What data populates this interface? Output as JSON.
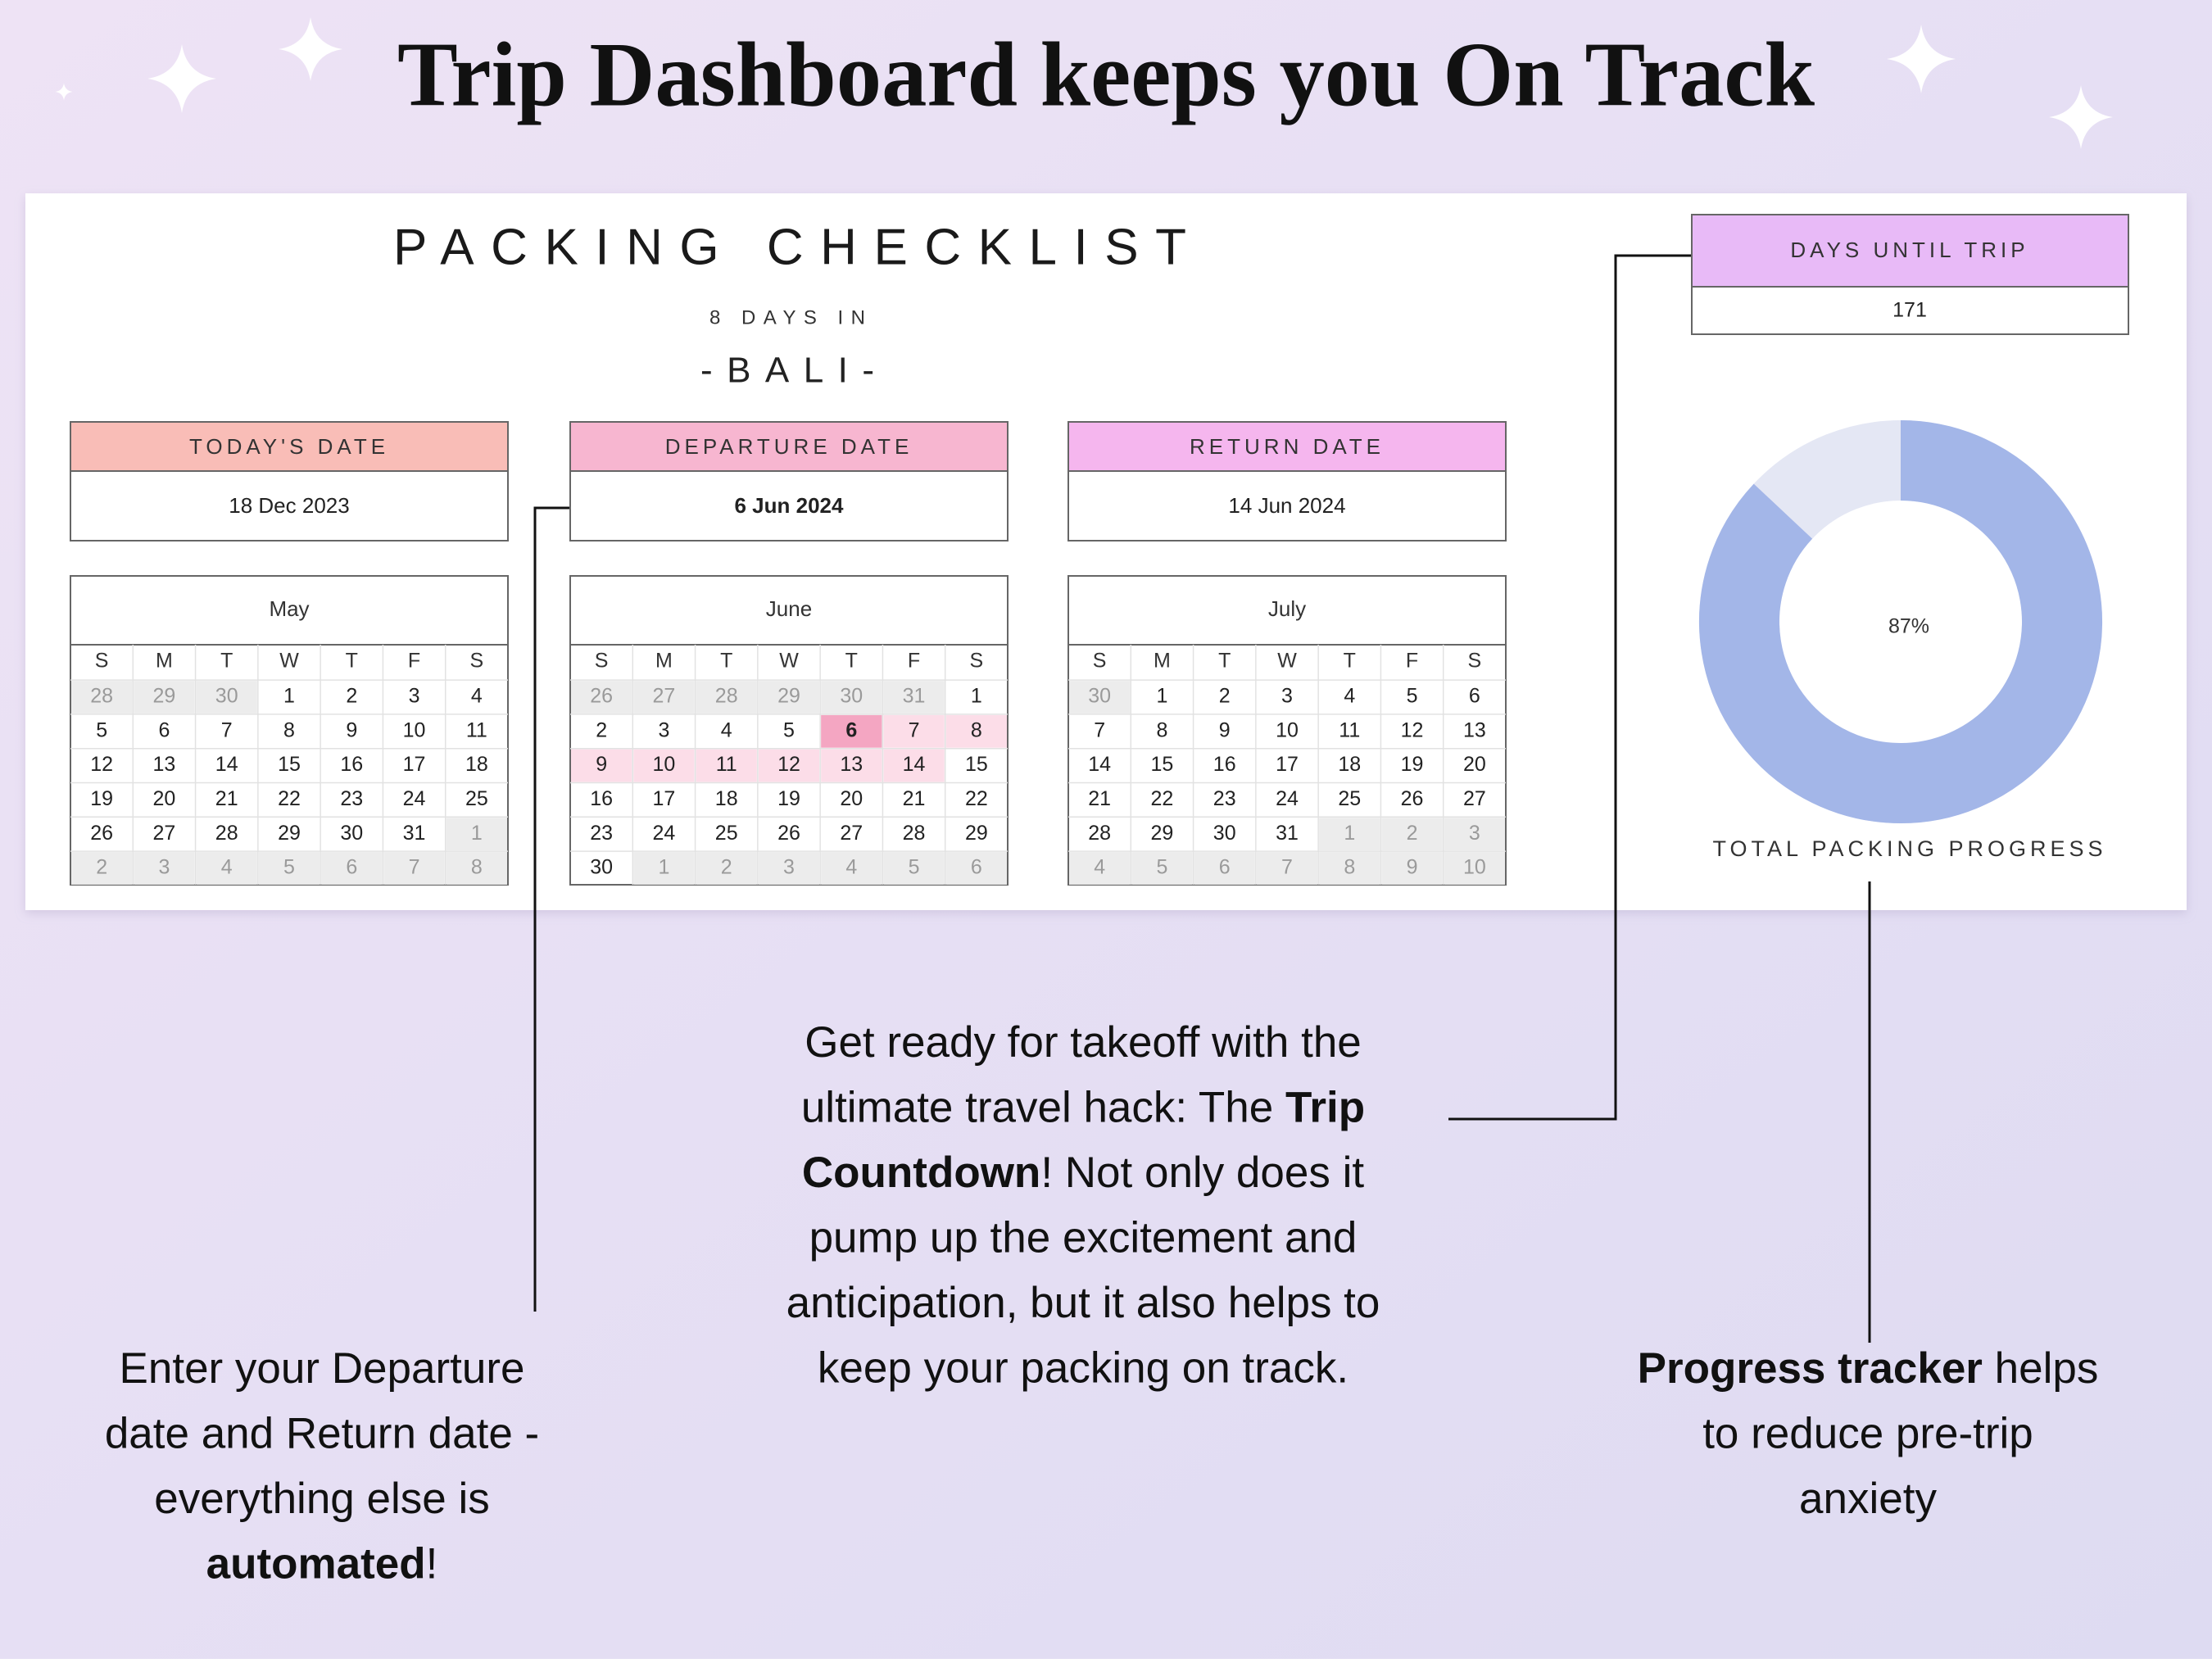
{
  "title": "Trip Dashboard keeps you On Track",
  "checklist": {
    "title": "PACKING CHECKLIST",
    "subtitle": "8 DAYS IN",
    "destination": "-BALI-",
    "dates": [
      {
        "label": "TODAY'S DATE",
        "value": "18 Dec 2023",
        "color": "#f9bdb7"
      },
      {
        "label": "DEPARTURE DATE",
        "value": "6 Jun 2024",
        "color": "#f7b6d0",
        "bold": true
      },
      {
        "label": "RETURN DATE",
        "value": "14 Jun 2024",
        "color": "#f5b6ee"
      }
    ],
    "weekdays": [
      "S",
      "M",
      "T",
      "W",
      "T",
      "F",
      "S"
    ],
    "calendars": [
      {
        "month": "May",
        "weeks": [
          [
            28,
            29,
            30,
            1,
            2,
            3,
            4
          ],
          [
            5,
            6,
            7,
            8,
            9,
            10,
            11
          ],
          [
            12,
            13,
            14,
            15,
            16,
            17,
            18
          ],
          [
            19,
            20,
            21,
            22,
            23,
            24,
            25
          ],
          [
            26,
            27,
            28,
            29,
            30,
            31,
            1
          ],
          [
            2,
            3,
            4,
            5,
            6,
            7,
            8
          ]
        ]
      },
      {
        "month": "June",
        "weeks": [
          [
            26,
            27,
            28,
            29,
            30,
            31,
            1
          ],
          [
            2,
            3,
            4,
            5,
            6,
            7,
            8
          ],
          [
            9,
            10,
            11,
            12,
            13,
            14,
            15
          ],
          [
            16,
            17,
            18,
            19,
            20,
            21,
            22
          ],
          [
            23,
            24,
            25,
            26,
            27,
            28,
            29
          ],
          [
            30,
            1,
            2,
            3,
            4,
            5,
            6
          ]
        ],
        "highlight": {
          "start": 6,
          "end": 14,
          "start_color": "#f4a6c2",
          "color": "#fcdde8"
        }
      },
      {
        "month": "July",
        "weeks": [
          [
            30,
            1,
            2,
            3,
            4,
            5,
            6
          ],
          [
            7,
            8,
            9,
            10,
            11,
            12,
            13
          ],
          [
            14,
            15,
            16,
            17,
            18,
            19,
            20
          ],
          [
            21,
            22,
            23,
            24,
            25,
            26,
            27
          ],
          [
            28,
            29,
            30,
            31,
            1,
            2,
            3
          ],
          [
            4,
            5,
            6,
            7,
            8,
            9,
            10
          ]
        ]
      }
    ]
  },
  "countdown": {
    "label": "DAYS UNTIL TRIP",
    "value": 171,
    "color": "#e8baf7"
  },
  "progress": {
    "value": 87,
    "value_label": "87%",
    "label": "TOTAL PACKING PROGRESS",
    "color": "#a3b6e8",
    "track_color": "#e4e7f4"
  },
  "annotations": [
    {
      "lines": [
        [
          {
            "text": "Enter your Departure"
          }
        ],
        [
          {
            "text": "date and Return date -"
          }
        ],
        [
          {
            "text": "everything else is"
          }
        ],
        [
          {
            "text": "automated",
            "bold": true
          },
          {
            "text": "!"
          }
        ]
      ]
    },
    {
      "lines": [
        [
          {
            "text": "Get ready for takeoff with the"
          }
        ],
        [
          {
            "text": "ultimate travel hack: The "
          },
          {
            "text": "Trip",
            "bold": true
          }
        ],
        [
          {
            "text": "Countdown",
            "bold": true
          },
          {
            "text": "! Not only does it"
          }
        ],
        [
          {
            "text": "pump up the excitement and"
          }
        ],
        [
          {
            "text": "anticipation, but it also helps to"
          }
        ],
        [
          {
            "text": "keep your packing on track."
          }
        ]
      ]
    },
    {
      "lines": [
        [
          {
            "text": "Progress tracker",
            "bold": true
          },
          {
            "text": " helps"
          }
        ],
        [
          {
            "text": "to reduce pre-trip"
          }
        ],
        [
          {
            "text": "anxiety"
          }
        ]
      ]
    }
  ]
}
